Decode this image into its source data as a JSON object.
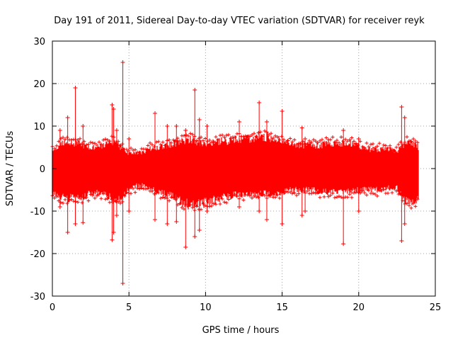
{
  "chart_data": {
    "type": "scatter",
    "title": "Day 191 of 2011, Sidereal Day-to-day VTEC variation (SDTVAR) for receiver reyk",
    "xlabel": "GPS time / hours",
    "ylabel": "SDTVAR / TECUs",
    "xlim": [
      0,
      25
    ],
    "ylim": [
      -30,
      30
    ],
    "xticks": [
      0,
      5,
      10,
      15,
      20,
      25
    ],
    "yticks": [
      -30,
      -20,
      -10,
      0,
      10,
      20,
      30
    ],
    "xtick_labels": [
      "0",
      "5",
      "10",
      "15",
      "20",
      "25"
    ],
    "ytick_labels": [
      "-30",
      "-20",
      "-10",
      "0",
      "10",
      "20",
      "30"
    ],
    "grid": true,
    "series": [
      {
        "name": "SDTVAR",
        "color": "#ff0000",
        "marker": "plus",
        "envelope": {
          "x": [
            0.0,
            0.5,
            1.0,
            1.5,
            2.0,
            2.5,
            3.0,
            3.5,
            4.0,
            4.5,
            5.0,
            5.5,
            6.0,
            6.5,
            7.0,
            7.5,
            8.0,
            8.5,
            9.0,
            9.5,
            10.0,
            10.5,
            11.0,
            11.5,
            12.0,
            12.5,
            13.0,
            13.5,
            14.0,
            14.5,
            15.0,
            15.5,
            16.0,
            16.5,
            17.0,
            17.5,
            18.0,
            18.5,
            19.0,
            19.5,
            20.0,
            20.5,
            21.0,
            21.5,
            22.0,
            22.5,
            23.0,
            23.5,
            23.9
          ],
          "upper": [
            4.0,
            5.5,
            6.5,
            6.0,
            5.5,
            5.0,
            5.0,
            6.0,
            6.5,
            5.0,
            3.5,
            3.5,
            4.0,
            5.0,
            5.0,
            5.5,
            6.0,
            6.5,
            7.0,
            6.0,
            6.0,
            6.0,
            6.5,
            6.5,
            7.0,
            7.0,
            7.0,
            7.5,
            7.5,
            7.0,
            6.5,
            6.0,
            5.5,
            5.5,
            5.5,
            5.5,
            6.0,
            6.0,
            6.0,
            6.0,
            5.0,
            4.5,
            4.5,
            4.5,
            4.5,
            4.0,
            6.0,
            6.0,
            5.0
          ],
          "lower": [
            -6.0,
            -6.5,
            -7.0,
            -7.0,
            -6.5,
            -6.0,
            -5.5,
            -6.0,
            -7.5,
            -7.0,
            -5.0,
            -4.0,
            -4.0,
            -5.0,
            -5.5,
            -6.0,
            -7.0,
            -8.0,
            -8.5,
            -8.5,
            -8.0,
            -7.5,
            -7.0,
            -6.5,
            -6.0,
            -6.0,
            -6.0,
            -6.0,
            -6.0,
            -6.0,
            -5.5,
            -5.0,
            -5.0,
            -5.0,
            -5.0,
            -5.5,
            -5.5,
            -5.5,
            -5.5,
            -5.5,
            -5.0,
            -5.0,
            -5.0,
            -5.0,
            -4.5,
            -4.5,
            -7.5,
            -8.0,
            -7.0
          ]
        },
        "spikes": [
          {
            "x": 0.5,
            "y_min": -9.0,
            "y_max": 9.0
          },
          {
            "x": 1.0,
            "y_min": -15.0,
            "y_max": 12.0
          },
          {
            "x": 1.5,
            "y_min": -13.0,
            "y_max": 19.0
          },
          {
            "x": 2.0,
            "y_min": -12.7,
            "y_max": 10.0
          },
          {
            "x": 3.9,
            "y_min": -16.8,
            "y_max": 15.0
          },
          {
            "x": 4.0,
            "y_min": -15.0,
            "y_max": 14.0
          },
          {
            "x": 4.2,
            "y_min": -11.0,
            "y_max": 9.0
          },
          {
            "x": 4.6,
            "y_min": -27.0,
            "y_max": 25.0
          },
          {
            "x": 5.0,
            "y_min": -10.0,
            "y_max": 7.0
          },
          {
            "x": 6.7,
            "y_min": -12.0,
            "y_max": 13.0
          },
          {
            "x": 7.5,
            "y_min": -13.0,
            "y_max": 10.0
          },
          {
            "x": 8.1,
            "y_min": -12.5,
            "y_max": 10.0
          },
          {
            "x": 8.7,
            "y_min": -18.5,
            "y_max": 9.0
          },
          {
            "x": 9.3,
            "y_min": -16.0,
            "y_max": 18.5
          },
          {
            "x": 9.6,
            "y_min": -14.5,
            "y_max": 11.5
          },
          {
            "x": 10.1,
            "y_min": -10.0,
            "y_max": 10.0
          },
          {
            "x": 12.2,
            "y_min": -9.0,
            "y_max": 11.0
          },
          {
            "x": 13.5,
            "y_min": -10.0,
            "y_max": 15.5
          },
          {
            "x": 14.0,
            "y_min": -12.0,
            "y_max": 11.0
          },
          {
            "x": 15.0,
            "y_min": -13.0,
            "y_max": 13.5
          },
          {
            "x": 16.3,
            "y_min": -11.0,
            "y_max": 9.6
          },
          {
            "x": 16.5,
            "y_min": -10.0,
            "y_max": 7.0
          },
          {
            "x": 19.0,
            "y_min": -17.7,
            "y_max": 9.0
          },
          {
            "x": 20.0,
            "y_min": -10.0,
            "y_max": 7.0
          },
          {
            "x": 22.8,
            "y_min": -17.0,
            "y_max": 14.5
          },
          {
            "x": 23.0,
            "y_min": -13.0,
            "y_max": 12.0
          }
        ]
      }
    ]
  }
}
